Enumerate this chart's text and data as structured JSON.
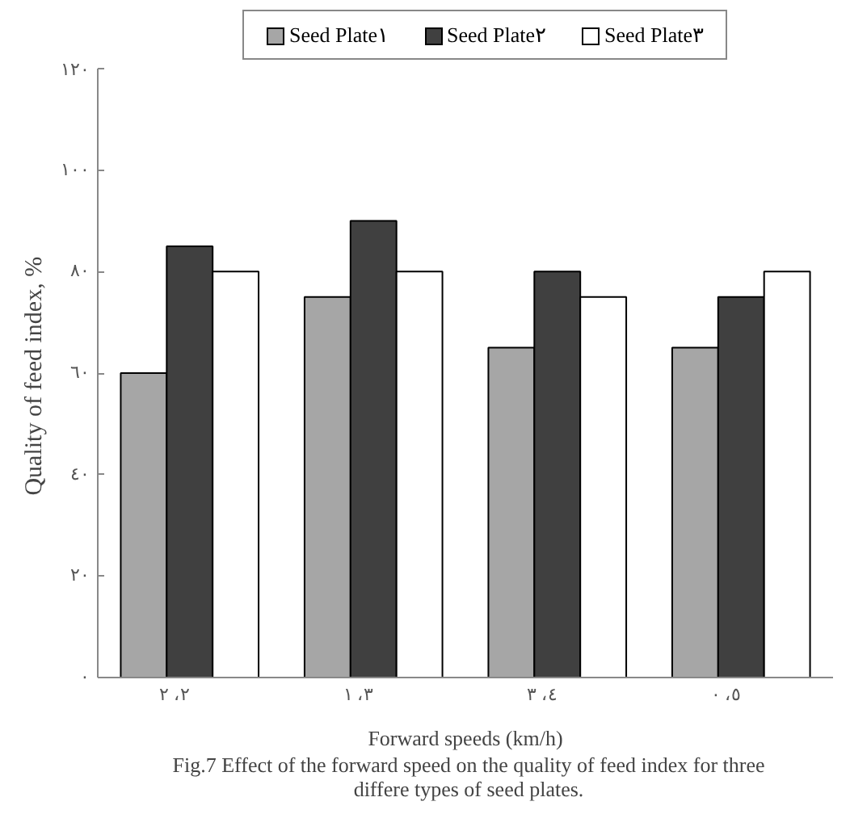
{
  "chart_data": {
    "type": "bar",
    "xlabel": "Forward speeds (km/h)",
    "ylabel": "Quality of feed  index, %",
    "categories": [
      "٢، ٢",
      "٣، ١",
      "٤، ٣",
      "٥، ٠"
    ],
    "series": [
      {
        "name": "Seed Plate١",
        "color": "#a6a6a6",
        "values": [
          60,
          75,
          65,
          65
        ]
      },
      {
        "name": "Seed Plate٢",
        "color": "#404040",
        "values": [
          85,
          90,
          80,
          75
        ]
      },
      {
        "name": "Seed Plate٣",
        "color": "#ffffff",
        "values": [
          80,
          80,
          75,
          80
        ]
      }
    ],
    "ylim": [
      0,
      120
    ],
    "yticks": [
      {
        "value": 0,
        "label": "٠"
      },
      {
        "value": 20,
        "label": "٢٠"
      },
      {
        "value": 40,
        "label": "٤٠"
      },
      {
        "value": 60,
        "label": "٦٠"
      },
      {
        "value": 80,
        "label": "٨٠"
      },
      {
        "value": 100,
        "label": "١٠٠"
      },
      {
        "value": 120,
        "label": "١٢٠"
      }
    ],
    "grid": false,
    "legend": "top",
    "annotations": [
      "Fig.7 Effect of the forward speed on the quality of feed index for three differe types of seed plates."
    ]
  }
}
